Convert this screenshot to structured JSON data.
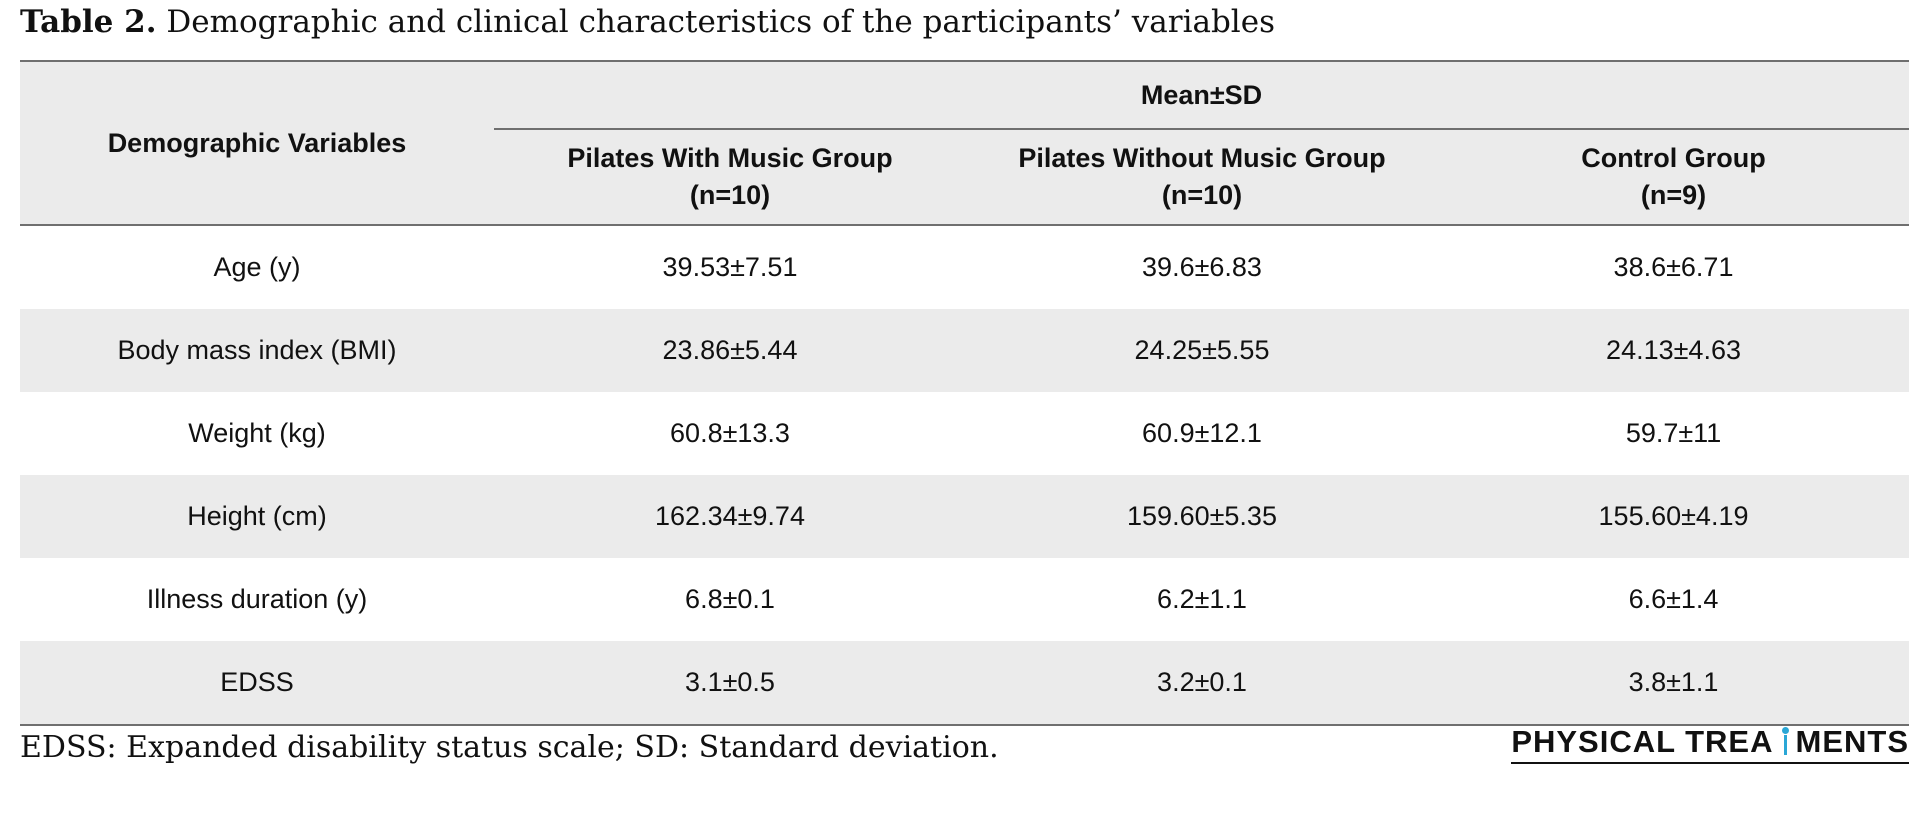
{
  "caption": {
    "label": "Table 2.",
    "text": "Demographic and clinical characteristics of the participants’ variables"
  },
  "table": {
    "row_header": "Demographic Variables",
    "group_header": "Mean±SD",
    "columns": [
      {
        "name": "Pilates With Music Group",
        "n": "(n=10)"
      },
      {
        "name": "Pilates Without Music Group",
        "n": "(n=10)"
      },
      {
        "name": "Control Group",
        "n": "(n=9)"
      }
    ],
    "rows": [
      {
        "variable": "Age (y)",
        "values": [
          "39.53±7.51",
          "39.6±6.83",
          "38.6±6.71"
        ]
      },
      {
        "variable": "Body mass index (BMI)",
        "values": [
          "23.86±5.44",
          "24.25±5.55",
          "24.13±4.63"
        ]
      },
      {
        "variable": "Weight (kg)",
        "values": [
          "60.8±13.3",
          "60.9±12.1",
          "59.7±11"
        ]
      },
      {
        "variable": "Height (cm)",
        "values": [
          "162.34±9.74",
          "159.60±5.35",
          "155.60±4.19"
        ]
      },
      {
        "variable": "Illness duration (y)",
        "values": [
          "6.8±0.1",
          "6.2±1.1",
          "6.6±1.4"
        ]
      },
      {
        "variable": "EDSS",
        "values": [
          "3.1±0.5",
          "3.2±0.1",
          "3.8±1.1"
        ]
      }
    ]
  },
  "footnote": "EDSS: Expanded disability status scale; SD: Standard deviation.",
  "logo": {
    "text_before": "PHYSICAL TREA",
    "text_after": "MENTS"
  }
}
